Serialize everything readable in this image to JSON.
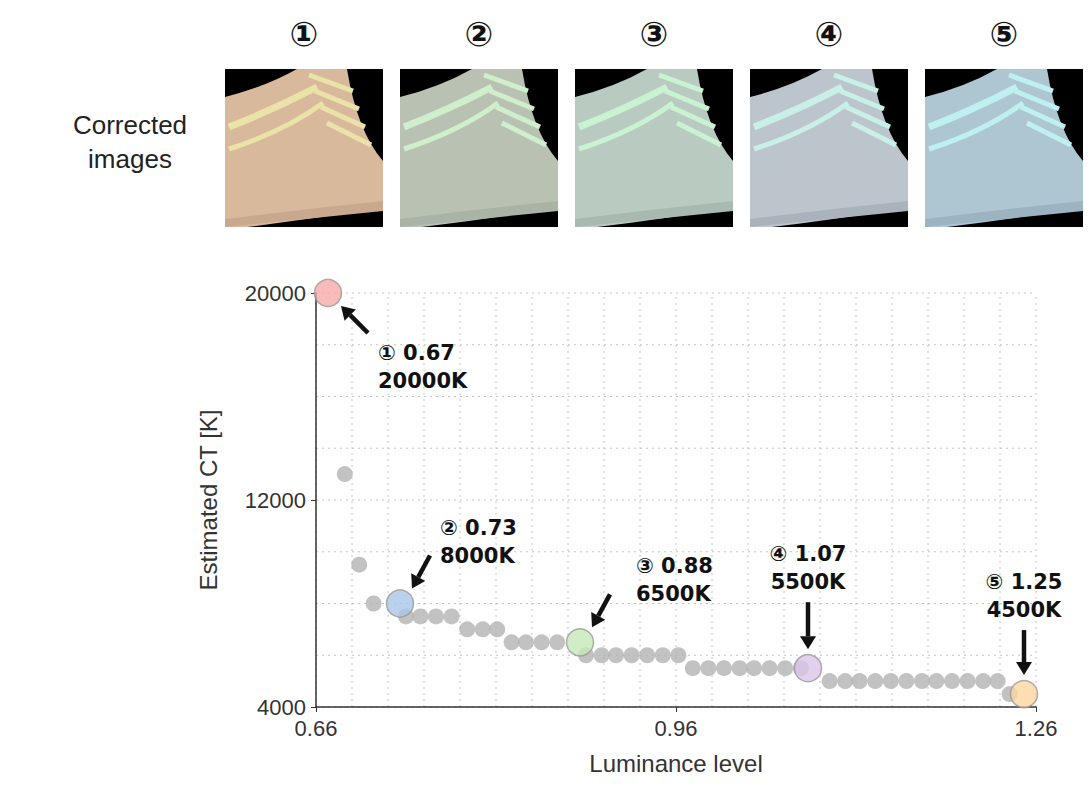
{
  "images": {
    "label": "Corrected images",
    "panels": [
      "①",
      "②",
      "③",
      "④",
      "⑤"
    ]
  },
  "chart_data": {
    "type": "scatter",
    "x_label": "Luminance level",
    "y_label": "Estimated CT [K]",
    "x": [
      0.684,
      0.696,
      0.708,
      0.735,
      0.747,
      0.76,
      0.773,
      0.786,
      0.799,
      0.811,
      0.823,
      0.835,
      0.848,
      0.861,
      0.885,
      0.898,
      0.91,
      0.923,
      0.936,
      0.949,
      0.962,
      0.974,
      0.987,
      1.0,
      1.013,
      1.025,
      1.038,
      1.051,
      1.064,
      1.088,
      1.101,
      1.113,
      1.126,
      1.139,
      1.152,
      1.165,
      1.177,
      1.19,
      1.203,
      1.216,
      1.228,
      1.238
    ],
    "values": [
      13000,
      9500,
      8000,
      7500,
      7500,
      7500,
      7500,
      7000,
      7000,
      7000,
      6500,
      6500,
      6500,
      6500,
      6000,
      6000,
      6000,
      6000,
      6000,
      6000,
      6000,
      5500,
      5500,
      5500,
      5500,
      5500,
      5500,
      5500,
      5500,
      5000,
      5000,
      5000,
      5000,
      5000,
      5000,
      5000,
      5000,
      5000,
      5000,
      5000,
      5000,
      4500
    ],
    "color": "#b3b3b3",
    "xlim": [
      0.66,
      1.26
    ],
    "xticks": [
      0.66,
      0.96,
      1.26
    ],
    "ylim": [
      4000,
      20000
    ],
    "yticks": [
      4000,
      12000,
      20000
    ],
    "grid": true,
    "highlights": [
      {
        "tag": "①",
        "x": 0.67,
        "y": 20000,
        "ct_label": "20000K",
        "color": "#f6aaa8"
      },
      {
        "tag": "②",
        "x": 0.73,
        "y": 8000,
        "ct_label": "8000K",
        "color": "#a9c6e6"
      },
      {
        "tag": "③",
        "x": 0.88,
        "y": 6500,
        "ct_label": "6500K",
        "color": "#c6e8ba"
      },
      {
        "tag": "④",
        "x": 1.07,
        "y": 5500,
        "ct_label": "5500K",
        "color": "#dbc6e8"
      },
      {
        "tag": "⑤",
        "x": 1.25,
        "y": 4500,
        "ct_label": "4500K",
        "color": "#fdd6a0"
      }
    ]
  }
}
